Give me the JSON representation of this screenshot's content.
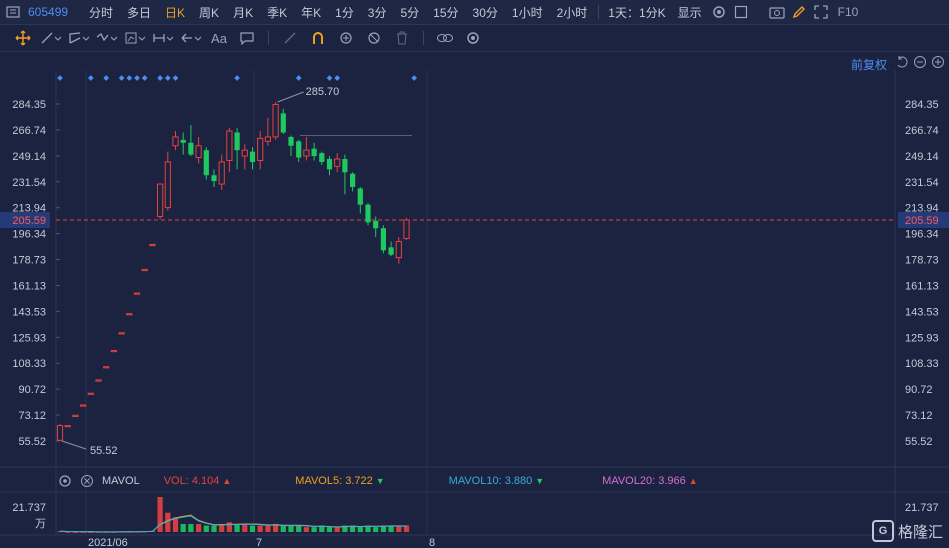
{
  "header": {
    "code": "605499",
    "periods": [
      {
        "label": "分时",
        "active": false
      },
      {
        "label": "多日",
        "active": false
      },
      {
        "label": "日K",
        "active": true
      },
      {
        "label": "周K",
        "active": false
      },
      {
        "label": "月K",
        "active": false
      },
      {
        "label": "季K",
        "active": false
      },
      {
        "label": "年K",
        "active": false
      },
      {
        "label": "1分",
        "active": false
      },
      {
        "label": "3分",
        "active": false
      },
      {
        "label": "5分",
        "active": false
      },
      {
        "label": "15分",
        "active": false
      },
      {
        "label": "30分",
        "active": false
      },
      {
        "label": "1小时",
        "active": false
      },
      {
        "label": "2小时",
        "active": false
      }
    ],
    "multi_period": "1天：1分K",
    "display_label": "显示",
    "f10_label": "F10"
  },
  "toolbar": {
    "text_tool": "Aa"
  },
  "adjust_label": "前复权",
  "colors": {
    "up": "#e8413e",
    "down": "#1ec960",
    "price_line": "#e8413e",
    "mavol5": "#f0a020",
    "mavol10": "#3aaad8",
    "mavol20": "#d76fd0",
    "accent": "#4d8ef0"
  },
  "price_axis": {
    "ticks": [
      "284.35",
      "266.74",
      "249.14",
      "231.54",
      "213.94",
      "196.34",
      "178.73",
      "161.13",
      "143.53",
      "125.93",
      "108.33",
      "90.72",
      "73.12",
      "55.52"
    ],
    "current": "205.59"
  },
  "annotations": {
    "high": "285.70",
    "low": "55.52"
  },
  "volume_legend": {
    "name": "MAVOL",
    "vol": "VOL: 4.104",
    "mavol5": "MAVOL5: 3.722",
    "mavol10": "MAVOL10: 3.880",
    "mavol20": "MAVOL20: 3.966"
  },
  "volume_axis": {
    "max": "21.737",
    "unit": "万"
  },
  "time_axis": [
    "2021/06",
    "7",
    "8"
  ],
  "watermark": "格隆汇",
  "chart_data": {
    "type": "candlestick",
    "candles": [
      {
        "o": 56,
        "c": 66,
        "h": 67,
        "l": 55.5
      },
      {
        "o": 66,
        "c": 66,
        "h": 66,
        "l": 66
      },
      {
        "o": 73,
        "c": 73,
        "h": 73,
        "l": 73
      },
      {
        "o": 80,
        "c": 80,
        "h": 80,
        "l": 80
      },
      {
        "o": 88,
        "c": 88,
        "h": 88,
        "l": 88
      },
      {
        "o": 97,
        "c": 97,
        "h": 97,
        "l": 97
      },
      {
        "o": 106,
        "c": 106,
        "h": 106,
        "l": 106
      },
      {
        "o": 117,
        "c": 117,
        "h": 117,
        "l": 117
      },
      {
        "o": 129,
        "c": 129,
        "h": 129,
        "l": 129
      },
      {
        "o": 142,
        "c": 142,
        "h": 142,
        "l": 142
      },
      {
        "o": 156,
        "c": 156,
        "h": 156,
        "l": 156
      },
      {
        "o": 172,
        "c": 172,
        "h": 172,
        "l": 172
      },
      {
        "o": 189,
        "c": 189,
        "h": 189,
        "l": 189
      },
      {
        "o": 208,
        "c": 230,
        "h": 230,
        "l": 206
      },
      {
        "o": 214,
        "c": 245,
        "h": 252,
        "l": 212
      },
      {
        "o": 256,
        "c": 262,
        "h": 266,
        "l": 253
      },
      {
        "o": 260,
        "c": 258,
        "h": 265,
        "l": 250
      },
      {
        "o": 258,
        "c": 250,
        "h": 270,
        "l": 249
      },
      {
        "o": 248,
        "c": 256,
        "h": 262,
        "l": 244
      },
      {
        "o": 253,
        "c": 236,
        "h": 255,
        "l": 233
      },
      {
        "o": 236,
        "c": 232,
        "h": 240,
        "l": 228
      },
      {
        "o": 230,
        "c": 245,
        "h": 250,
        "l": 226
      },
      {
        "o": 246,
        "c": 266,
        "h": 268,
        "l": 238
      },
      {
        "o": 265,
        "c": 253,
        "h": 268,
        "l": 240
      },
      {
        "o": 249,
        "c": 253,
        "h": 257,
        "l": 240
      },
      {
        "o": 252,
        "c": 245,
        "h": 255,
        "l": 240
      },
      {
        "o": 246,
        "c": 261,
        "h": 266,
        "l": 240
      },
      {
        "o": 259,
        "c": 262,
        "h": 275,
        "l": 256
      },
      {
        "o": 262,
        "c": 284,
        "h": 285.7,
        "l": 260
      },
      {
        "o": 278,
        "c": 265,
        "h": 281,
        "l": 264
      },
      {
        "o": 262,
        "c": 256,
        "h": 263,
        "l": 249
      },
      {
        "o": 259,
        "c": 248,
        "h": 260,
        "l": 245
      },
      {
        "o": 249,
        "c": 253,
        "h": 262,
        "l": 246
      },
      {
        "o": 254,
        "c": 249,
        "h": 258,
        "l": 246
      },
      {
        "o": 251,
        "c": 245,
        "h": 252,
        "l": 243
      },
      {
        "o": 247,
        "c": 240,
        "h": 249,
        "l": 236
      },
      {
        "o": 242,
        "c": 247,
        "h": 251,
        "l": 238
      },
      {
        "o": 247,
        "c": 238,
        "h": 250,
        "l": 223
      },
      {
        "o": 237,
        "c": 228,
        "h": 238,
        "l": 225
      },
      {
        "o": 227,
        "c": 216,
        "h": 228,
        "l": 210
      },
      {
        "o": 216,
        "c": 204,
        "h": 217,
        "l": 202
      },
      {
        "o": 205,
        "c": 200,
        "h": 208,
        "l": 194
      },
      {
        "o": 200,
        "c": 185,
        "h": 202,
        "l": 183
      },
      {
        "o": 187,
        "c": 182,
        "h": 191,
        "l": 181
      },
      {
        "o": 180,
        "c": 191,
        "h": 194,
        "l": 176
      },
      {
        "o": 193,
        "c": 205.59,
        "h": 207,
        "l": 192
      }
    ],
    "volumes": [
      0.5,
      0.1,
      0.1,
      0.1,
      0.1,
      0.1,
      0.1,
      0.1,
      0.2,
      0.2,
      0.3,
      0.5,
      0.8,
      21.737,
      12,
      9,
      5,
      5,
      5,
      4,
      4,
      5,
      6,
      5,
      5,
      4,
      4,
      4,
      5,
      4,
      4,
      4,
      3,
      3,
      4,
      3,
      3,
      4,
      4,
      3,
      4,
      3,
      4,
      4,
      4,
      4.104
    ],
    "mavol5": [
      0.5,
      0.3,
      0.25,
      0.22,
      0.2,
      0.1,
      0.1,
      0.1,
      0.12,
      0.14,
      0.18,
      0.26,
      0.4,
      4.7,
      7.1,
      8.8,
      9.7,
      10.5,
      7.2,
      5.6,
      4.6,
      4.6,
      4.8,
      4.8,
      5.0,
      5.0,
      4.8,
      4.4,
      4.4,
      4.2,
      4.2,
      4.2,
      4.0,
      3.6,
      3.6,
      3.4,
      3.2,
      3.4,
      3.6,
      3.4,
      3.6,
      3.6,
      3.6,
      3.8,
      3.8,
      3.722
    ]
  }
}
